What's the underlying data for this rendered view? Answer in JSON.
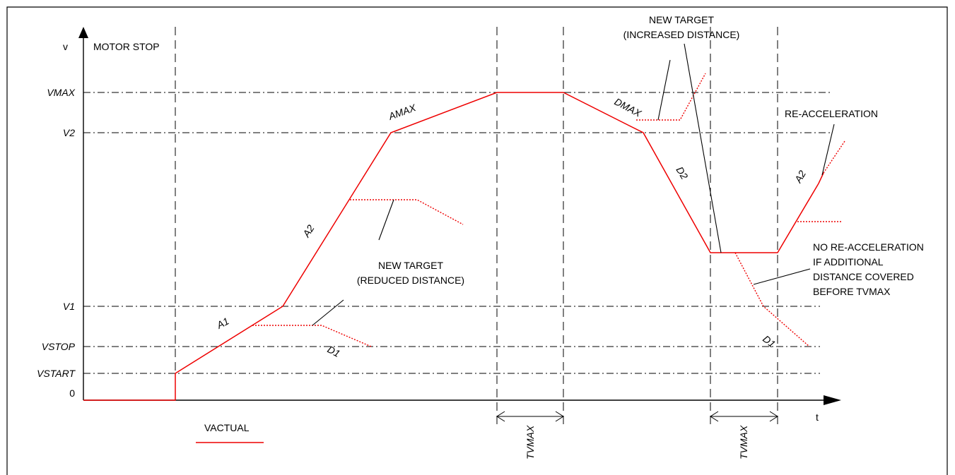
{
  "axes": {
    "y_label": "v",
    "x_label": "t",
    "levels": [
      "VMAX",
      "V2",
      "V1",
      "VSTOP",
      "VSTART",
      "0"
    ]
  },
  "labels": {
    "motor_stop": "MOTOR STOP",
    "new_target_reduced": [
      "NEW TARGET",
      "(REDUCED DISTANCE)"
    ],
    "new_target_increased": [
      "NEW TARGET",
      "(INCREASED DISTANCE)"
    ],
    "re_acceleration": "RE-ACCELERATION",
    "no_re_acceleration": [
      "NO RE-ACCELERATION",
      "IF ADDITIONAL",
      "DISTANCE COVERED",
      "BEFORE TVMAX"
    ],
    "tvmax": "TVMAX",
    "legend": "VACTUAL"
  },
  "segments": {
    "a1": "A1",
    "a2": "A2",
    "amax": "AMAX",
    "dmax": "DMAX",
    "d2": "D2",
    "d1": "D1",
    "a2_reaccel": "A2"
  },
  "colors": {
    "profile": "#ee0000",
    "lines": "#000000"
  }
}
